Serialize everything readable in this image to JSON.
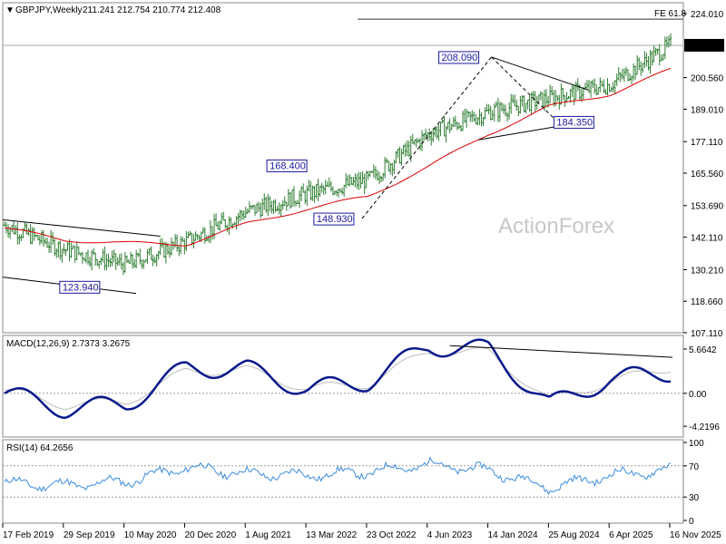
{
  "main": {
    "title": "GBPJPY,Weekly",
    "ohlc": "211.241 212.754 210.774 212.408",
    "watermark": "ActionForex",
    "price_ticks": [
      "224.010",
      "212.408",
      "200.560",
      "189.010",
      "177.110",
      "165.560",
      "153.690",
      "142.110",
      "130.210",
      "118.660",
      "107.110"
    ],
    "current_price": "212.408",
    "fe_label": "FE 61.8",
    "annotations": [
      "208.090",
      "168.400",
      "148.930",
      "123.940",
      "184.350"
    ]
  },
  "macd": {
    "title": "MACD(12,26,9) 2.7373 3.2675",
    "ticks": [
      "5.6642",
      "0.00",
      "-4.2196"
    ]
  },
  "rsi": {
    "title": "RSI(14) 64.2656",
    "ticks": [
      "100",
      "70",
      "30",
      "0"
    ]
  },
  "xaxis": {
    "labels": [
      "17 Feb 2019",
      "29 Sep 2019",
      "10 May 2020",
      "20 Dec 2020",
      "1 Aug 2021",
      "13 Mar 2022",
      "23 Oct 2022",
      "4 Jun 2023",
      "14 Jan 2024",
      "25 Aug 2024",
      "6 Apr 2025",
      "16 Nov 2025"
    ]
  },
  "colors": {
    "price_bar": "#2e7d32",
    "sma": "#dd0000",
    "macd_line": "#0a1a8c",
    "macd_signal": "#bdbdbd",
    "rsi_line": "#3b8de0",
    "annotation": "#1a1aa0",
    "grid": "#9e9e9e"
  },
  "chart_data": [
    {
      "type": "ohlc",
      "title": "GBPJPY,Weekly",
      "x_dates": [
        "17 Feb 2019",
        "29 Sep 2019",
        "10 May 2020",
        "20 Dec 2020",
        "1 Aug 2021",
        "13 Mar 2022",
        "23 Oct 2022",
        "4 Jun 2023",
        "14 Jan 2024",
        "25 Aug 2024",
        "6 Apr 2025",
        "16 Nov 2025"
      ],
      "last_bar": {
        "open": 211.241,
        "high": 212.754,
        "low": 210.774,
        "close": 212.408
      },
      "ylim": [
        107.11,
        228.0
      ],
      "series": [
        {
          "name": "close",
          "x": [
            "17 Feb 2019",
            "29 Sep 2019",
            "10 May 2020",
            "20 Dec 2020",
            "1 Aug 2021",
            "13 Mar 2022",
            "23 Oct 2022",
            "4 Jun 2023",
            "14 Jan 2024",
            "25 Aug 2024",
            "6 Apr 2025",
            "16 Nov 2025"
          ],
          "values": [
            146.5,
            137.5,
            132.0,
            140.5,
            151.5,
            158.0,
            163.0,
            180.0,
            188.0,
            193.0,
            198.0,
            212.4
          ]
        },
        {
          "x": [
            "17 Feb 2019",
            "29 Sep 2019",
            "10 May 2020",
            "20 Dec 2020",
            "1 Aug 2021",
            "13 Mar 2022",
            "23 Oct 2022",
            "4 Jun 2023",
            "14 Jan 2024",
            "25 Aug 2024",
            "6 Apr 2025",
            "16 Nov 2025"
          ],
          "values": [
            145.5,
            141.0,
            140.0,
            139.5,
            147.0,
            152.5,
            157.0,
            168.0,
            180.0,
            190.0,
            194.5,
            203.5
          ]
        }
      ],
      "levels": [
        {
          "label": "FE 61.8",
          "value": 222.0
        }
      ],
      "annotations": [
        {
          "text": "208.090",
          "x": "14 Jan 2024",
          "y": 208.09
        },
        {
          "text": "168.400",
          "x": "13 Mar 2022",
          "y": 168.4
        },
        {
          "text": "148.930",
          "x": "23 Oct 2022",
          "y": 148.93
        },
        {
          "text": "123.940",
          "x": "29 Sep 2019",
          "y": 123.94
        },
        {
          "text": "184.350",
          "x": "25 Aug 2024",
          "y": 184.35
        }
      ]
    },
    {
      "type": "line",
      "title": "MACD(12,26,9) 2.7373 3.2675",
      "ticks": [
        5.6642,
        0.0,
        -4.2196
      ],
      "ylim": [
        -5.6,
        7.4
      ],
      "series": [
        {
          "x": [
            "17 Feb 2019",
            "29 Sep 2019",
            "10 May 2020",
            "20 Dec 2020",
            "1 Aug 2021",
            "13 Mar 2022",
            "23 Oct 2022",
            "4 Jun 2023",
            "14 Jan 2024",
            "25 Aug 2024",
            "6 Apr 2025",
            "16 Nov 2025"
          ],
          "values": [
            0.0,
            -2.0,
            -1.4,
            3.2,
            3.1,
            0.5,
            1.5,
            6.0,
            5.6,
            -1.5,
            1.8,
            2.7
          ]
        },
        {
          "x": [
            "17 Feb 2019",
            "29 Sep 2019",
            "10 May 2020",
            "20 Dec 2020",
            "1 Aug 2021",
            "13 Mar 2022",
            "23 Oct 2022",
            "4 Jun 2023",
            "14 Jan 2024",
            "25 Aug 2024",
            "6 Apr 2025",
            "16 Nov 2025"
          ],
          "values": [
            0.4,
            -1.5,
            -1.1,
            2.8,
            3.0,
            0.6,
            1.2,
            5.4,
            5.2,
            -0.9,
            1.5,
            3.3
          ]
        }
      ]
    },
    {
      "type": "line",
      "title": "RSI(14) 64.2656",
      "ticks": [
        100,
        70,
        30,
        0
      ],
      "ylim": [
        0,
        100
      ],
      "series": [
        {
          "x": [
            "17 Feb 2019",
            "29 Sep 2019",
            "10 May 2020",
            "20 Dec 2020",
            "1 Aug 2021",
            "13 Mar 2022",
            "23 Oct 2022",
            "4 Jun 2023",
            "14 Jan 2024",
            "25 Aug 2024",
            "6 Apr 2025",
            "16 Nov 2025"
          ],
          "values": [
            48,
            45,
            50,
            68,
            60,
            58,
            62,
            72,
            64,
            42,
            58,
            64.3
          ]
        }
      ]
    }
  ]
}
